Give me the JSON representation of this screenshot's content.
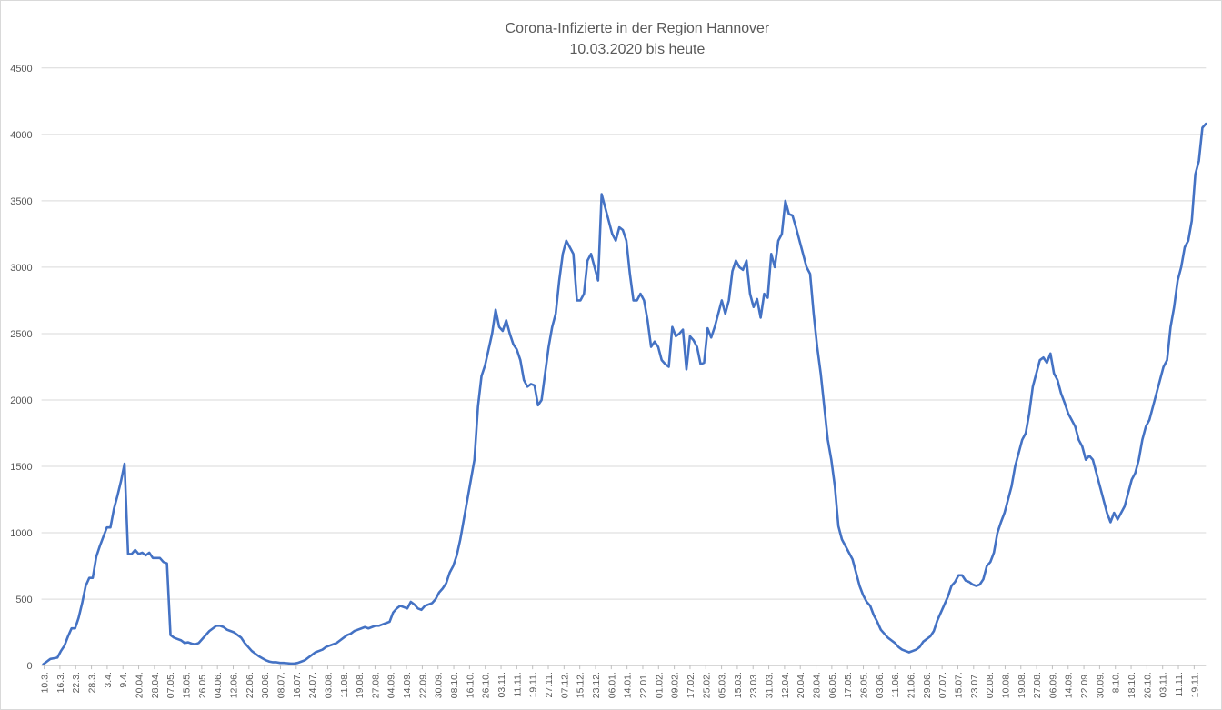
{
  "chart_data": {
    "type": "line",
    "title": "Corona-Infizierte in der Region Hannover",
    "subtitle": "10.03.2020 bis heute",
    "ylim": [
      0,
      4500
    ],
    "yticks": [
      0,
      500,
      1000,
      1500,
      2000,
      2500,
      3000,
      3500,
      4000,
      4500
    ],
    "grid": true,
    "series_color": "#4472c4",
    "x_start_label": "10.3.",
    "xtick_labels": [
      "10.3.",
      "16.3.",
      "22.3.",
      "28.3.",
      "3.4.",
      "9.4.",
      "20.04.",
      "28.04.",
      "07.05.",
      "15.05.",
      "26.05.",
      "04.06.",
      "12.06.",
      "22.06.",
      "30.06.",
      "08.07.",
      "16.07.",
      "24.07.",
      "03.08.",
      "11.08.",
      "19.08.",
      "27.08.",
      "04.09.",
      "14.09.",
      "22.09.",
      "30.09.",
      "08.10.",
      "16.10.",
      "26.10.",
      "03.11.",
      "11.11.",
      "19.11.",
      "27.11.",
      "07.12.",
      "15.12.",
      "23.12.",
      "06.01.",
      "14.01.",
      "22.01.",
      "01.02.",
      "09.02.",
      "17.02.",
      "25.02.",
      "05.03.",
      "15.03.",
      "23.03.",
      "31.03.",
      "12.04.",
      "20.04.",
      "28.04.",
      "06.05.",
      "17.05.",
      "26.05.",
      "03.06.",
      "11.06.",
      "21.06.",
      "29.06.",
      "07.07.",
      "15.07.",
      "23.07.",
      "02.08.",
      "10.08.",
      "19.08.",
      "27.08.",
      "06.09.",
      "14.09.",
      "22.09.",
      "30.09.",
      "8.10.",
      "18.10.",
      "26.10.",
      "03.11.",
      "11.11.",
      "19.11."
    ],
    "series": [
      {
        "values": [
          10,
          30,
          50,
          55,
          60,
          110,
          150,
          220,
          280,
          280,
          360,
          470,
          600,
          660,
          660,
          820,
          900,
          970,
          1040,
          1040,
          1180,
          1280,
          1390,
          1520,
          840,
          840,
          870,
          840,
          850,
          830,
          850,
          810,
          810,
          810,
          780,
          770,
          230,
          210,
          200,
          190,
          170,
          175,
          165,
          160,
          170,
          200,
          230,
          260,
          280,
          300,
          300,
          290,
          270,
          260,
          250,
          230,
          210,
          170,
          140,
          110,
          90,
          70,
          55,
          40,
          30,
          25,
          25,
          20,
          20,
          18,
          15,
          15,
          20,
          30,
          40,
          60,
          80,
          100,
          110,
          120,
          140,
          150,
          160,
          170,
          190,
          210,
          230,
          240,
          260,
          270,
          280,
          290,
          280,
          290,
          300,
          300,
          310,
          320,
          330,
          400,
          430,
          450,
          440,
          430,
          480,
          460,
          430,
          420,
          450,
          460,
          470,
          500,
          550,
          580,
          620,
          700,
          750,
          830,
          950,
          1100,
          1250,
          1400,
          1550,
          1950,
          2180,
          2260,
          2380,
          2500,
          2680,
          2550,
          2520,
          2600,
          2500,
          2420,
          2380,
          2300,
          2150,
          2100,
          2120,
          2110,
          1960,
          2000,
          2200,
          2400,
          2550,
          2650,
          2900,
          3100,
          3200,
          3150,
          3100,
          2750,
          2750,
          2800,
          3050,
          3100,
          3000,
          2900,
          3550,
          3450,
          3350,
          3250,
          3200,
          3300,
          3280,
          3200,
          2950,
          2750,
          2750,
          2800,
          2750,
          2600,
          2400,
          2440,
          2400,
          2300,
          2270,
          2250,
          2550,
          2480,
          2500,
          2530,
          2230,
          2480,
          2450,
          2400,
          2270,
          2280,
          2540,
          2470,
          2550,
          2650,
          2750,
          2650,
          2750,
          2970,
          3050,
          3000,
          2980,
          3050,
          2800,
          2700,
          2760,
          2620,
          2800,
          2770,
          3100,
          3000,
          3200,
          3250,
          3500,
          3400,
          3390,
          3300,
          3200,
          3100,
          3000,
          2950,
          2650,
          2400,
          2200,
          1950,
          1700,
          1550,
          1350,
          1050,
          950,
          900,
          850,
          800,
          700,
          600,
          530,
          480,
          450,
          380,
          330,
          270,
          240,
          210,
          190,
          170,
          140,
          120,
          110,
          100,
          110,
          120,
          140,
          180,
          200,
          220,
          260,
          340,
          400,
          460,
          520,
          600,
          630,
          680,
          680,
          640,
          630,
          610,
          600,
          610,
          650,
          750,
          780,
          850,
          1000,
          1080,
          1150,
          1250,
          1350,
          1500,
          1600,
          1700,
          1750,
          1900,
          2100,
          2200,
          2300,
          2320,
          2280,
          2350,
          2200,
          2150,
          2050,
          1980,
          1900,
          1850,
          1800,
          1700,
          1650,
          1550,
          1580,
          1550,
          1450,
          1350,
          1250,
          1150,
          1080,
          1150,
          1100,
          1150,
          1200,
          1300,
          1400,
          1450,
          1550,
          1700,
          1800,
          1850,
          1950,
          2050,
          2150,
          2250,
          2300,
          2550,
          2700,
          2900,
          3000,
          3150,
          3200,
          3350,
          3700,
          3800,
          4050,
          4080
        ]
      }
    ]
  }
}
